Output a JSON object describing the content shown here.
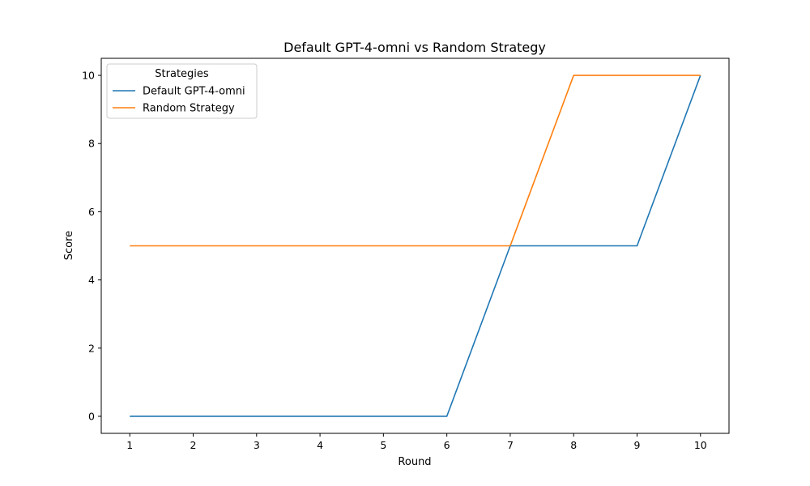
{
  "chart_data": {
    "type": "line",
    "title": "Default GPT-4-omni vs Random Strategy",
    "xlabel": "Round",
    "ylabel": "Score",
    "x": [
      1,
      2,
      3,
      4,
      5,
      6,
      7,
      8,
      9,
      10
    ],
    "xticks": [
      "1",
      "2",
      "3",
      "4",
      "5",
      "6",
      "7",
      "8",
      "9",
      "10"
    ],
    "yticks": [
      "0",
      "2",
      "4",
      "6",
      "8",
      "10"
    ],
    "xlim": [
      0.55,
      10.45
    ],
    "ylim": [
      -0.5,
      10.5
    ],
    "grid": false,
    "legend": {
      "title": "Strategies",
      "placement": "top-left"
    },
    "series": [
      {
        "name": "Default GPT-4-omni",
        "color": "#1f77b4",
        "values": [
          0,
          0,
          0,
          0,
          0,
          0,
          5,
          5,
          5,
          10
        ]
      },
      {
        "name": "Random Strategy",
        "color": "#ff7f0e",
        "values": [
          5,
          5,
          5,
          5,
          5,
          5,
          5,
          10,
          10,
          10
        ]
      }
    ]
  }
}
